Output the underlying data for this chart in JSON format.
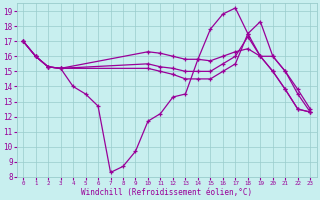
{
  "xlabel": "Windchill (Refroidissement éolien,°C)",
  "xlim": [
    -0.5,
    23.5
  ],
  "ylim": [
    8,
    19.5
  ],
  "xticks": [
    0,
    1,
    2,
    3,
    4,
    5,
    6,
    7,
    8,
    9,
    10,
    11,
    12,
    13,
    14,
    15,
    16,
    17,
    18,
    19,
    20,
    21,
    22,
    23
  ],
  "yticks": [
    8,
    9,
    10,
    11,
    12,
    13,
    14,
    15,
    16,
    17,
    18,
    19
  ],
  "bg_color": "#c8efef",
  "grid_color": "#99cccc",
  "line_color": "#990099",
  "series1": {
    "x": [
      0,
      1,
      2,
      3,
      4,
      5,
      6,
      7,
      8,
      9,
      10,
      11,
      12,
      13,
      14,
      15,
      16,
      17,
      18,
      19,
      20,
      21,
      22,
      23
    ],
    "y": [
      17,
      16,
      15.3,
      15.2,
      14,
      13.5,
      12.7,
      8.3,
      8.7,
      9.7,
      11.7,
      12.2,
      13.3,
      13.5,
      15.8,
      17.8,
      18.8,
      19.2,
      17.5,
      16,
      15,
      13.8,
      12.5,
      12.3
    ]
  },
  "series2": {
    "x": [
      0,
      1,
      2,
      3,
      10,
      11,
      12,
      13,
      14,
      15,
      16,
      17,
      18,
      19,
      20,
      21,
      22,
      23
    ],
    "y": [
      17,
      16,
      15.3,
      15.2,
      16.3,
      16.2,
      16.0,
      15.8,
      15.8,
      15.7,
      16.0,
      16.3,
      16.5,
      16.0,
      16.0,
      15.0,
      13.8,
      12.5
    ]
  },
  "series3": {
    "x": [
      0,
      1,
      2,
      3,
      10,
      11,
      12,
      13,
      14,
      15,
      16,
      17,
      18,
      19,
      20,
      21,
      22,
      23
    ],
    "y": [
      17,
      16,
      15.3,
      15.2,
      15.5,
      15.3,
      15.2,
      15.0,
      15.0,
      15.0,
      15.5,
      16.0,
      17.3,
      16.0,
      15.0,
      13.8,
      12.5,
      12.3
    ]
  },
  "series4": {
    "x": [
      0,
      1,
      2,
      3,
      10,
      11,
      12,
      13,
      14,
      15,
      16,
      17,
      18,
      19,
      20,
      21,
      22,
      23
    ],
    "y": [
      17,
      16,
      15.3,
      15.2,
      15.2,
      15.0,
      14.8,
      14.5,
      14.5,
      14.5,
      15.0,
      15.5,
      17.5,
      18.3,
      16.0,
      15.0,
      13.5,
      12.3
    ]
  }
}
